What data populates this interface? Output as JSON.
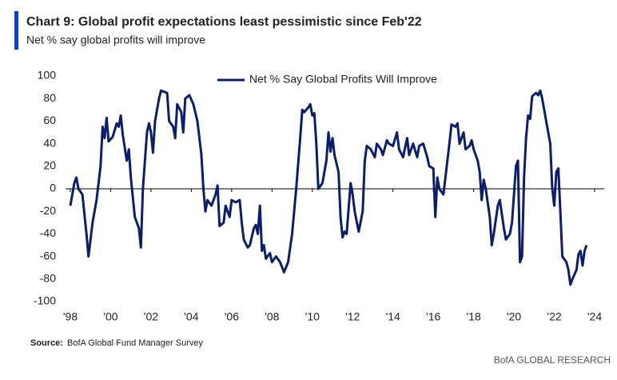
{
  "chart_data": {
    "type": "line",
    "title": "Chart 9: Global profit expectations least pessimistic since Feb'22",
    "subtitle": "Net % say global profits will improve",
    "source_label": "Source:",
    "source": "BofA Global Fund Manager Survey",
    "footer": "BofA GLOBAL RESEARCH",
    "legend": "top",
    "grid": false,
    "ylim": [
      -100,
      100
    ],
    "yticks": [
      -100,
      -80,
      -60,
      -40,
      -20,
      0,
      20,
      40,
      60,
      80,
      100
    ],
    "xlim": [
      1998,
      2024
    ],
    "xticks": [
      {
        "value": 1998,
        "label": "'98"
      },
      {
        "value": 2000,
        "label": "'00"
      },
      {
        "value": 2002,
        "label": "'02"
      },
      {
        "value": 2004,
        "label": "'04"
      },
      {
        "value": 2006,
        "label": "'06"
      },
      {
        "value": 2008,
        "label": "'08"
      },
      {
        "value": 2010,
        "label": "'10"
      },
      {
        "value": 2012,
        "label": "'12"
      },
      {
        "value": 2014,
        "label": "'14"
      },
      {
        "value": 2016,
        "label": "'16"
      },
      {
        "value": 2018,
        "label": "'18"
      },
      {
        "value": 2020,
        "label": "'20"
      },
      {
        "value": 2022,
        "label": "'22"
      },
      {
        "value": 2024,
        "label": "'24"
      }
    ],
    "x": [
      1998.0,
      1998.2,
      1998.3,
      1998.4,
      1998.6,
      1998.8,
      1998.9,
      1999.1,
      1999.3,
      1999.5,
      1999.6,
      1999.7,
      1999.8,
      1999.9,
      2000.1,
      2000.3,
      2000.4,
      2000.5,
      2000.6,
      2000.8,
      2000.9,
      2001.0,
      2001.2,
      2001.4,
      2001.5,
      2001.6,
      2001.8,
      2001.9,
      2002.0,
      2002.1,
      2002.2,
      2002.4,
      2002.5,
      2002.8,
      2002.9,
      2003.1,
      2003.2,
      2003.3,
      2003.5,
      2003.6,
      2003.7,
      2003.9,
      2004.1,
      2004.3,
      2004.5,
      2004.6,
      2004.7,
      2004.8,
      2005.0,
      2005.2,
      2005.3,
      2005.4,
      2005.6,
      2005.7,
      2005.9,
      2006.0,
      2006.2,
      2006.4,
      2006.5,
      2006.6,
      2006.8,
      2006.9,
      2007.1,
      2007.2,
      2007.3,
      2007.4,
      2007.5,
      2007.6,
      2007.7,
      2007.9,
      2008.0,
      2008.2,
      2008.4,
      2008.6,
      2008.8,
      2009.0,
      2009.2,
      2009.4,
      2009.5,
      2009.6,
      2009.8,
      2009.9,
      2010.0,
      2010.1,
      2010.2,
      2010.3,
      2010.5,
      2010.7,
      2010.8,
      2010.9,
      2011.0,
      2011.1,
      2011.3,
      2011.4,
      2011.5,
      2011.6,
      2011.7,
      2011.9,
      2012.0,
      2012.1,
      2012.3,
      2012.5,
      2012.6,
      2012.7,
      2012.9,
      2013.1,
      2013.2,
      2013.4,
      2013.5,
      2013.7,
      2013.8,
      2014.0,
      2014.2,
      2014.3,
      2014.5,
      2014.7,
      2014.8,
      2015.0,
      2015.2,
      2015.3,
      2015.5,
      2015.7,
      2015.8,
      2016.0,
      2016.1,
      2016.2,
      2016.3,
      2016.5,
      2016.6,
      2016.8,
      2016.9,
      2017.1,
      2017.2,
      2017.3,
      2017.5,
      2017.6,
      2017.8,
      2017.9,
      2018.0,
      2018.2,
      2018.3,
      2018.4,
      2018.5,
      2018.6,
      2018.8,
      2018.9,
      2019.0,
      2019.2,
      2019.3,
      2019.5,
      2019.6,
      2019.8,
      2019.9,
      2020.1,
      2020.2,
      2020.3,
      2020.4,
      2020.5,
      2020.6,
      2020.7,
      2020.8,
      2020.9,
      2021.1,
      2021.2,
      2021.3,
      2021.4,
      2021.6,
      2021.8,
      2021.9,
      2022.0,
      2022.1,
      2022.2,
      2022.3,
      2022.4,
      2022.6,
      2022.7,
      2022.8,
      2022.9,
      2023.1,
      2023.2,
      2023.3,
      2023.4,
      2023.5,
      2023.6
    ],
    "series": [
      {
        "name": "Net % Say Global Profits Will Improve",
        "color": "#0b1e6e",
        "values": [
          -15,
          5,
          10,
          0,
          -5,
          -40,
          -60,
          -30,
          -10,
          20,
          55,
          45,
          63,
          42,
          46,
          58,
          55,
          65,
          48,
          25,
          35,
          10,
          -25,
          -35,
          -52,
          0,
          50,
          58,
          50,
          32,
          60,
          80,
          87,
          85,
          60,
          55,
          45,
          75,
          68,
          50,
          80,
          83,
          75,
          60,
          30,
          0,
          -20,
          -10,
          -15,
          -5,
          3,
          -33,
          -30,
          -15,
          -25,
          -10,
          -12,
          -10,
          -30,
          -45,
          -52,
          -50,
          -35,
          -32,
          -40,
          -15,
          -55,
          -50,
          -62,
          -57,
          -65,
          -60,
          -65,
          -74,
          -65,
          -40,
          0,
          45,
          70,
          68,
          72,
          75,
          65,
          67,
          40,
          0,
          5,
          25,
          50,
          33,
          45,
          30,
          15,
          -25,
          -43,
          -38,
          -40,
          5,
          -5,
          -20,
          -38,
          -20,
          25,
          38,
          35,
          28,
          40,
          35,
          30,
          43,
          40,
          38,
          50,
          35,
          28,
          45,
          30,
          40,
          28,
          38,
          40,
          28,
          20,
          18,
          -25,
          10,
          0,
          -5,
          10,
          40,
          57,
          55,
          58,
          40,
          50,
          35,
          38,
          43,
          35,
          25,
          15,
          -10,
          8,
          0,
          -25,
          -50,
          -40,
          -15,
          -10,
          -35,
          -45,
          -40,
          -30,
          20,
          25,
          -65,
          -60,
          10,
          45,
          65,
          62,
          82,
          85,
          83,
          87,
          80,
          60,
          40,
          0,
          -15,
          15,
          18,
          -20,
          -60,
          -65,
          -72,
          -85,
          -80,
          -72,
          -58,
          -55,
          -68,
          -55,
          -50
        ]
      }
    ]
  }
}
